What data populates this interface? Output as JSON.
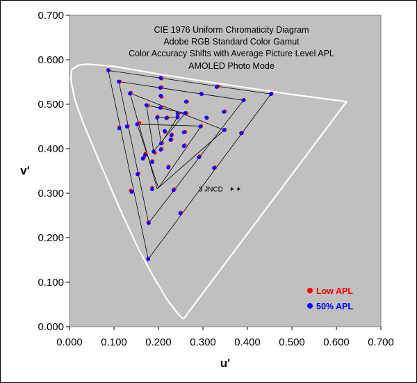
{
  "chart_data": {
    "type": "scatter",
    "title_lines": [
      "CIE 1976 Uniform Chromaticity Diagram",
      "Adobe RGB Standard Color Gamut",
      "Color Accuracy Shifts with Average Picture Level APL",
      "AMOLED Photo Mode"
    ],
    "xlabel": "u'",
    "ylabel": "v'",
    "xlim": [
      0,
      0.7
    ],
    "ylim": [
      0,
      0.7
    ],
    "x_ticks": [
      "0.000",
      "0.100",
      "0.200",
      "0.300",
      "0.400",
      "0.500",
      "0.600",
      "0.700"
    ],
    "y_ticks": [
      "0.000",
      "0.100",
      "0.200",
      "0.300",
      "0.400",
      "0.500",
      "0.600",
      "0.700"
    ],
    "plot_background": "#c0c0c0",
    "grid": false,
    "legend_position": "bottom-right",
    "annotation": {
      "text": "3 JNCD",
      "x": 0.345,
      "y": 0.31,
      "marker_positions": [
        [
          0.365,
          0.31
        ],
        [
          0.38,
          0.31
        ]
      ]
    },
    "spectrum_locus": [
      [
        0.256,
        0.017
      ],
      [
        0.243,
        0.03
      ],
      [
        0.22,
        0.06
      ],
      [
        0.19,
        0.11
      ],
      [
        0.155,
        0.175
      ],
      [
        0.12,
        0.25
      ],
      [
        0.085,
        0.33
      ],
      [
        0.055,
        0.4
      ],
      [
        0.03,
        0.46
      ],
      [
        0.012,
        0.51
      ],
      [
        0.003,
        0.555
      ],
      [
        0.005,
        0.578
      ],
      [
        0.02,
        0.588
      ],
      [
        0.04,
        0.59
      ],
      [
        0.07,
        0.588
      ],
      [
        0.1,
        0.585
      ],
      [
        0.13,
        0.58
      ],
      [
        0.2,
        0.568
      ],
      [
        0.3,
        0.552
      ],
      [
        0.4,
        0.537
      ],
      [
        0.5,
        0.522
      ],
      [
        0.623,
        0.506
      ],
      [
        0.256,
        0.017
      ]
    ],
    "triangles": [
      [
        [
          0.087,
          0.576
        ],
        [
          0.453,
          0.523
        ],
        [
          0.177,
          0.152
        ]
      ],
      [
        [
          0.111,
          0.551
        ],
        [
          0.391,
          0.509
        ],
        [
          0.178,
          0.233
        ]
      ],
      [
        [
          0.136,
          0.525
        ],
        [
          0.348,
          0.442
        ],
        [
          0.197,
          0.31
        ]
      ],
      [
        [
          0.152,
          0.455
        ],
        [
          0.296,
          0.451
        ],
        [
          0.2,
          0.312
        ]
      ],
      [
        [
          0.173,
          0.498
        ],
        [
          0.26,
          0.48
        ],
        [
          0.189,
          0.394
        ]
      ],
      [
        [
          0.197,
          0.47
        ],
        [
          0.243,
          0.471
        ],
        [
          0.206,
          0.412
        ]
      ]
    ],
    "series": [
      {
        "name": "Low APL",
        "color": "#ff0000",
        "points": [
          [
            0.087,
            0.577
          ],
          [
            0.113,
            0.551
          ],
          [
            0.138,
            0.526
          ],
          [
            0.157,
            0.458
          ],
          [
            0.176,
            0.497
          ],
          [
            0.198,
            0.472
          ],
          [
            0.22,
            0.47
          ],
          [
            0.207,
            0.558
          ],
          [
            0.207,
            0.538
          ],
          [
            0.207,
            0.517
          ],
          [
            0.207,
            0.493
          ],
          [
            0.208,
            0.413
          ],
          [
            0.334,
            0.54
          ],
          [
            0.296,
            0.524
          ],
          [
            0.264,
            0.506
          ],
          [
            0.245,
            0.479
          ],
          [
            0.454,
            0.524
          ],
          [
            0.392,
            0.51
          ],
          [
            0.349,
            0.484
          ],
          [
            0.309,
            0.469
          ],
          [
            0.263,
            0.48
          ],
          [
            0.243,
            0.472
          ],
          [
            0.388,
            0.436
          ],
          [
            0.349,
            0.443
          ],
          [
            0.296,
            0.451
          ],
          [
            0.26,
            0.438
          ],
          [
            0.23,
            0.432
          ],
          [
            0.327,
            0.358
          ],
          [
            0.293,
            0.383
          ],
          [
            0.259,
            0.408
          ],
          [
            0.229,
            0.421
          ],
          [
            0.215,
            0.438
          ],
          [
            0.251,
            0.256
          ],
          [
            0.236,
            0.309
          ],
          [
            0.223,
            0.36
          ],
          [
            0.207,
            0.4
          ],
          [
            0.192,
            0.391
          ],
          [
            0.177,
            0.153
          ],
          [
            0.178,
            0.235
          ],
          [
            0.186,
            0.312
          ],
          [
            0.171,
            0.389
          ],
          [
            0.186,
            0.372
          ],
          [
            0.138,
            0.306
          ],
          [
            0.155,
            0.344
          ],
          [
            0.167,
            0.38
          ],
          [
            0.131,
            0.451
          ],
          [
            0.112,
            0.448
          ]
        ]
      },
      {
        "name": "50% APL",
        "color": "#0000ff",
        "points": [
          [
            0.088,
            0.576
          ],
          [
            0.111,
            0.551
          ],
          [
            0.136,
            0.524
          ],
          [
            0.152,
            0.455
          ],
          [
            0.173,
            0.498
          ],
          [
            0.197,
            0.47
          ],
          [
            0.218,
            0.469
          ],
          [
            0.205,
            0.559
          ],
          [
            0.204,
            0.537
          ],
          [
            0.205,
            0.519
          ],
          [
            0.204,
            0.492
          ],
          [
            0.206,
            0.412
          ],
          [
            0.331,
            0.539
          ],
          [
            0.297,
            0.523
          ],
          [
            0.262,
            0.506
          ],
          [
            0.243,
            0.48
          ],
          [
            0.453,
            0.523
          ],
          [
            0.391,
            0.509
          ],
          [
            0.347,
            0.483
          ],
          [
            0.308,
            0.47
          ],
          [
            0.26,
            0.48
          ],
          [
            0.243,
            0.471
          ],
          [
            0.386,
            0.435
          ],
          [
            0.348,
            0.442
          ],
          [
            0.294,
            0.45
          ],
          [
            0.257,
            0.437
          ],
          [
            0.229,
            0.43
          ],
          [
            0.325,
            0.357
          ],
          [
            0.291,
            0.381
          ],
          [
            0.257,
            0.406
          ],
          [
            0.227,
            0.42
          ],
          [
            0.214,
            0.44
          ],
          [
            0.249,
            0.255
          ],
          [
            0.234,
            0.307
          ],
          [
            0.222,
            0.358
          ],
          [
            0.205,
            0.398
          ],
          [
            0.189,
            0.394
          ],
          [
            0.177,
            0.152
          ],
          [
            0.178,
            0.233
          ],
          [
            0.186,
            0.309
          ],
          [
            0.17,
            0.386
          ],
          [
            0.186,
            0.37
          ],
          [
            0.14,
            0.303
          ],
          [
            0.153,
            0.343
          ],
          [
            0.165,
            0.378
          ],
          [
            0.129,
            0.45
          ],
          [
            0.112,
            0.446
          ]
        ]
      }
    ]
  }
}
